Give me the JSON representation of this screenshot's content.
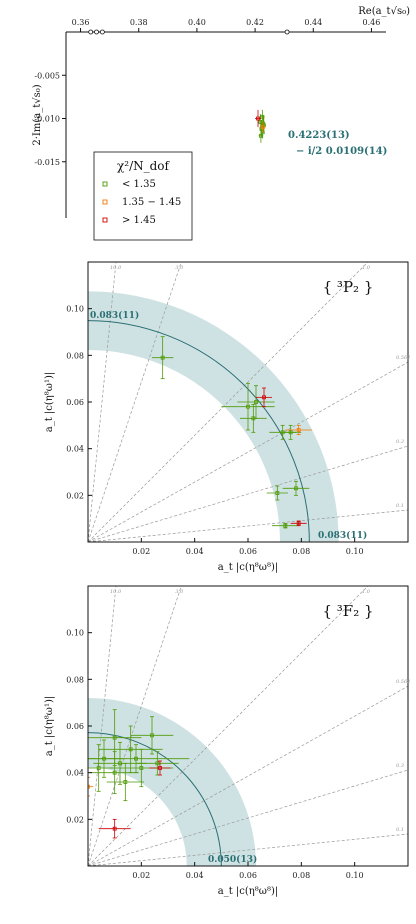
{
  "chart_data": [
    {
      "type": "scatter",
      "title": "",
      "xlabel": "Re(a_t√s₀)",
      "ylabel": "2·Im(a_t√s₀)",
      "xlim": [
        0.355,
        0.465
      ],
      "ylim": [
        -0.0215,
        0.0
      ],
      "x_ticks": [
        "0.36",
        "0.38",
        "0.40",
        "0.42",
        "0.44",
        "0.46"
      ],
      "y_ticks": [
        "-0.005",
        "-0.010",
        "-0.015"
      ],
      "legend": {
        "title": "χ²/N_dof",
        "placement": "bottom-left",
        "entries": [
          {
            "label": "< 1.35",
            "color": "#4e9a06"
          },
          {
            "label": "1.35 − 1.45",
            "color": "#f57900"
          },
          {
            "label": "> 1.45",
            "color": "#cc0000"
          }
        ]
      },
      "annotation": {
        "re": "0.4223(13)",
        "im": "− i/2 0.0109(14)"
      },
      "open_circles_on_axis": [
        0.3635,
        0.3655,
        0.3675,
        0.431
      ],
      "series": [
        {
          "name": "< 1.35",
          "color": "#4e9a06",
          "points": [
            {
              "x": 0.4225,
              "y": -0.0098,
              "ex": 0.0008,
              "ey": 0.0008
            },
            {
              "x": 0.4218,
              "y": -0.0104,
              "ex": 0.0007,
              "ey": 0.0009
            },
            {
              "x": 0.423,
              "y": -0.0108,
              "ex": 0.0006,
              "ey": 0.0008
            },
            {
              "x": 0.4222,
              "y": -0.0112,
              "ex": 0.0007,
              "ey": 0.001
            },
            {
              "x": 0.4226,
              "y": -0.0116,
              "ex": 0.0006,
              "ey": 0.0007
            },
            {
              "x": 0.422,
              "y": -0.012,
              "ex": 0.0008,
              "ey": 0.0008
            },
            {
              "x": 0.4228,
              "y": -0.0106,
              "ex": 0.0005,
              "ey": 0.0009
            }
          ]
        },
        {
          "name": "1.35 − 1.45",
          "color": "#f57900",
          "points": [
            {
              "x": 0.4227,
              "y": -0.011,
              "ex": 0.0005,
              "ey": 0.0006
            }
          ]
        },
        {
          "name": "> 1.45",
          "color": "#cc0000",
          "points": [
            {
              "x": 0.421,
              "y": -0.01,
              "ex": 0.001,
              "ey": 0.001
            }
          ]
        }
      ]
    },
    {
      "type": "scatter",
      "title": "{ ³P₂ }",
      "xlabel": "a_t |c(η⁸ω⁸)|",
      "ylabel": "a_t |c(η⁸ω¹)|",
      "xlim": [
        0.0,
        0.12
      ],
      "ylim": [
        0.0,
        0.12
      ],
      "x_ticks": [
        "0.02",
        "0.04",
        "0.06",
        "0.08",
        "0.10"
      ],
      "y_ticks": [
        "0.02",
        "0.04",
        "0.06",
        "0.08",
        "0.10"
      ],
      "arc": {
        "radius": 0.083,
        "band": 0.011,
        "labels": [
          "0.083(11)",
          "0.083(11)"
        ]
      },
      "rays": [
        {
          "slope": 10.0,
          "label": "10.0"
        },
        {
          "slope": 3.0,
          "label": "3.0"
        },
        {
          "slope": 1.0,
          "label": "1.0"
        },
        {
          "slope": 0.562,
          "label": "0.562"
        },
        {
          "slope": 0.3,
          "label": "0.3"
        },
        {
          "slope": 0.1,
          "label": "0.1"
        }
      ],
      "series": [
        {
          "name": "< 1.35",
          "color": "#4e9a06",
          "points": [
            {
              "x": 0.028,
              "y": 0.079,
              "ex": 0.004,
              "ey": 0.009
            },
            {
              "x": 0.06,
              "y": 0.058,
              "ex": 0.01,
              "ey": 0.01
            },
            {
              "x": 0.063,
              "y": 0.06,
              "ex": 0.007,
              "ey": 0.007
            },
            {
              "x": 0.062,
              "y": 0.053,
              "ex": 0.005,
              "ey": 0.006
            },
            {
              "x": 0.073,
              "y": 0.047,
              "ex": 0.005,
              "ey": 0.003
            },
            {
              "x": 0.076,
              "y": 0.047,
              "ex": 0.004,
              "ey": 0.003
            },
            {
              "x": 0.071,
              "y": 0.021,
              "ex": 0.004,
              "ey": 0.003
            },
            {
              "x": 0.078,
              "y": 0.023,
              "ex": 0.005,
              "ey": 0.003
            },
            {
              "x": 0.074,
              "y": 0.007,
              "ex": 0.005,
              "ey": 0.001
            }
          ]
        },
        {
          "name": "1.35 − 1.45",
          "color": "#f57900",
          "points": [
            {
              "x": 0.079,
              "y": 0.048,
              "ex": 0.005,
              "ey": 0.002
            }
          ]
        },
        {
          "name": "> 1.45",
          "color": "#cc0000",
          "points": [
            {
              "x": 0.066,
              "y": 0.062,
              "ex": 0.003,
              "ey": 0.004
            },
            {
              "x": 0.079,
              "y": 0.008,
              "ex": 0.003,
              "ey": 0.001
            }
          ]
        }
      ]
    },
    {
      "type": "scatter",
      "title": "{ ³F₂ }",
      "xlabel": "a_t |c(η⁸ω⁸)|",
      "ylabel": "a_t |c(η⁸ω¹)|",
      "xlim": [
        0.0,
        0.12
      ],
      "ylim": [
        0.0,
        0.12
      ],
      "x_ticks": [
        "0.02",
        "0.04",
        "0.06",
        "0.08",
        "0.10"
      ],
      "y_ticks": [
        "0.02",
        "0.04",
        "0.06",
        "0.08",
        "0.10"
      ],
      "arc": {
        "radius": 0.05,
        "band": 0.013,
        "labels": [
          "0.050(13)"
        ]
      },
      "rays": [
        {
          "slope": 10.0,
          "label": "10.0"
        },
        {
          "slope": 3.0,
          "label": "3.0"
        },
        {
          "slope": 1.0,
          "label": "1.0"
        },
        {
          "slope": 0.562,
          "label": "0.562"
        },
        {
          "slope": 0.3,
          "label": "0.3"
        },
        {
          "slope": 0.1,
          "label": "0.1"
        }
      ],
      "series": [
        {
          "name": "< 1.35",
          "color": "#4e9a06",
          "points": [
            {
              "x": 0.01,
              "y": 0.055,
              "ex": 0.01,
              "ey": 0.012
            },
            {
              "x": 0.016,
              "y": 0.05,
              "ex": 0.012,
              "ey": 0.01
            },
            {
              "x": 0.024,
              "y": 0.056,
              "ex": 0.008,
              "ey": 0.008
            },
            {
              "x": 0.006,
              "y": 0.046,
              "ex": 0.008,
              "ey": 0.008
            },
            {
              "x": 0.012,
              "y": 0.044,
              "ex": 0.01,
              "ey": 0.009
            },
            {
              "x": 0.02,
              "y": 0.042,
              "ex": 0.012,
              "ey": 0.008
            },
            {
              "x": 0.01,
              "y": 0.04,
              "ex": 0.009,
              "ey": 0.009
            },
            {
              "x": 0.018,
              "y": 0.046,
              "ex": 0.02,
              "ey": 0.006
            },
            {
              "x": 0.026,
              "y": 0.044,
              "ex": 0.008,
              "ey": 0.005
            },
            {
              "x": 0.004,
              "y": 0.042,
              "ex": 0.006,
              "ey": 0.01
            },
            {
              "x": 0.014,
              "y": 0.036,
              "ex": 0.007,
              "ey": 0.008
            }
          ]
        },
        {
          "name": "1.35 − 1.45",
          "color": "#f57900",
          "points": [
            {
              "x": 0.0,
              "y": 0.034,
              "ex": 0.002,
              "ey": 0.004
            }
          ]
        },
        {
          "name": "> 1.45",
          "color": "#cc0000",
          "points": [
            {
              "x": 0.01,
              "y": 0.016,
              "ex": 0.006,
              "ey": 0.004
            },
            {
              "x": 0.027,
              "y": 0.042,
              "ex": 0.004,
              "ey": 0.003
            }
          ]
        }
      ]
    }
  ]
}
